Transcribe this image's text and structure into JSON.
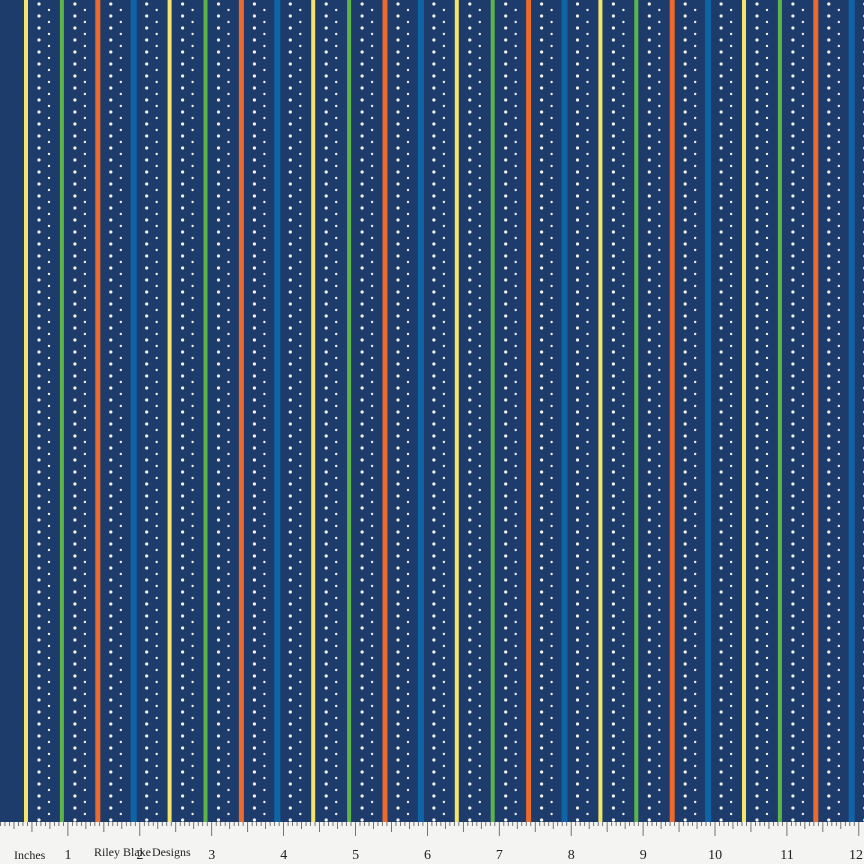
{
  "ruler": {
    "unit": "Inches",
    "numbers": [
      "1",
      "2",
      "3",
      "4",
      "5",
      "6",
      "7",
      "8",
      "9",
      "10",
      "11",
      "12"
    ]
  },
  "brand": {
    "name": "Riley Blake",
    "suffix": "Designs"
  }
}
